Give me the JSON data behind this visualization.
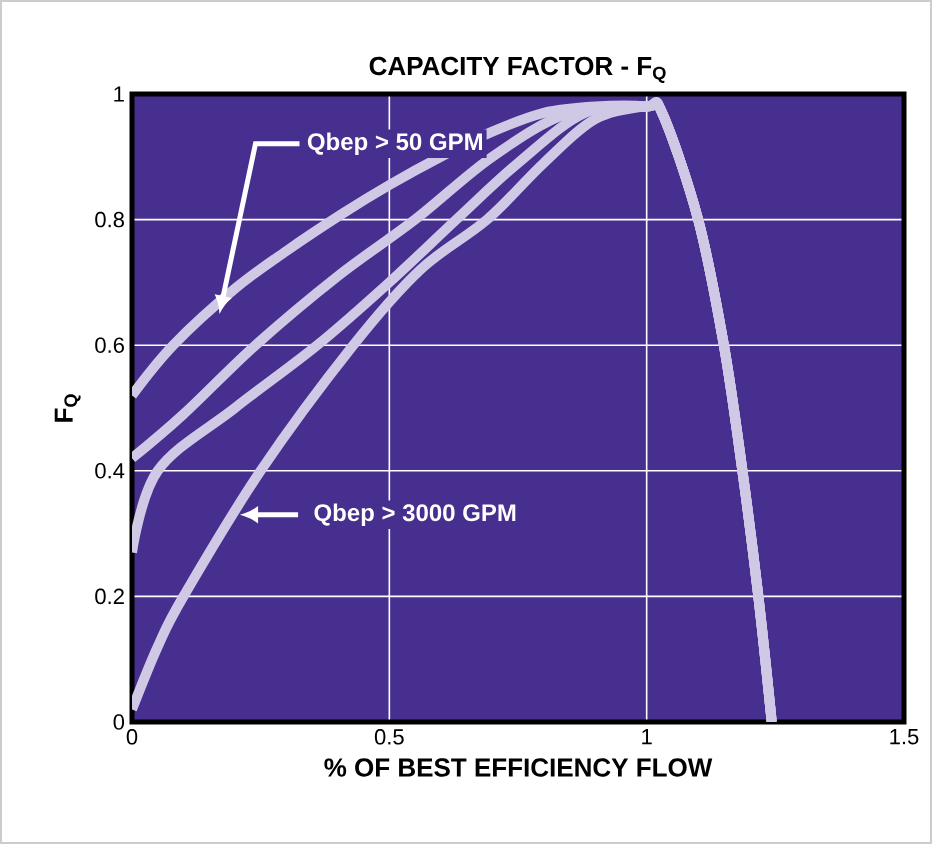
{
  "chart_data": {
    "type": "line",
    "title": "CAPACITY FACTOR - F$_{Q}$",
    "xlabel": "% OF BEST EFFICIENCY FLOW",
    "ylabel": "F$_{Q}$",
    "xlim": [
      0,
      1.5
    ],
    "ylim": [
      0,
      1
    ],
    "xticks": [
      0,
      0.5,
      1,
      1.5
    ],
    "yticks": [
      0,
      0.2,
      0.4,
      0.6,
      0.8,
      1
    ],
    "grid": true,
    "marker": "none",
    "line_style": "solid",
    "series": [
      {
        "color": "#d0c9e6",
        "x": [
          0,
          0.08,
          0.2,
          0.3,
          0.41,
          0.5,
          0.6,
          0.7,
          0.8,
          0.9,
          1.0,
          1.03,
          1.1,
          1.15,
          1.186,
          1.217,
          1.243
        ],
        "values": [
          0.52,
          0.6,
          0.69,
          0.75,
          0.81,
          0.855,
          0.9,
          0.94,
          0.97,
          0.98,
          0.98,
          0.97,
          0.8,
          0.6,
          0.4,
          0.2,
          0
        ]
      },
      {
        "color": "#d0c9e6",
        "x": [
          0,
          0.1,
          0.24,
          0.4,
          0.55,
          0.7,
          0.85,
          1.0,
          1.03,
          1.1,
          1.15,
          1.186,
          1.217,
          1.243
        ],
        "values": [
          0.42,
          0.49,
          0.6,
          0.71,
          0.8,
          0.9,
          0.97,
          0.98,
          0.97,
          0.8,
          0.6,
          0.4,
          0.2,
          0
        ]
      },
      {
        "color": "#d0c9e6",
        "x": [
          0,
          0.05,
          0.2,
          0.36,
          0.5,
          0.63,
          0.75,
          0.88,
          1.0,
          1.03,
          1.1,
          1.15,
          1.186,
          1.217,
          1.243
        ],
        "values": [
          0.27,
          0.4,
          0.5,
          0.6,
          0.7,
          0.8,
          0.89,
          0.97,
          0.98,
          0.97,
          0.8,
          0.6,
          0.4,
          0.2,
          0
        ]
      },
      {
        "color": "#d0c9e6",
        "x": [
          0,
          0.05,
          0.1,
          0.25,
          0.43,
          0.56,
          0.69,
          0.8,
          0.9,
          1.0,
          1.03,
          1.1,
          1.15,
          1.186,
          1.217,
          1.243
        ],
        "values": [
          0.02,
          0.12,
          0.2,
          0.4,
          0.6,
          0.72,
          0.8,
          0.89,
          0.96,
          0.98,
          0.97,
          0.8,
          0.6,
          0.4,
          0.2,
          0
        ]
      }
    ],
    "annotations": [
      {
        "text": "Qbep > 50 GPM",
        "x": 0.17,
        "y": 0.65
      },
      {
        "text": "Qbep > 3000 GPM",
        "x": 0.21,
        "y": 0.33
      }
    ]
  }
}
